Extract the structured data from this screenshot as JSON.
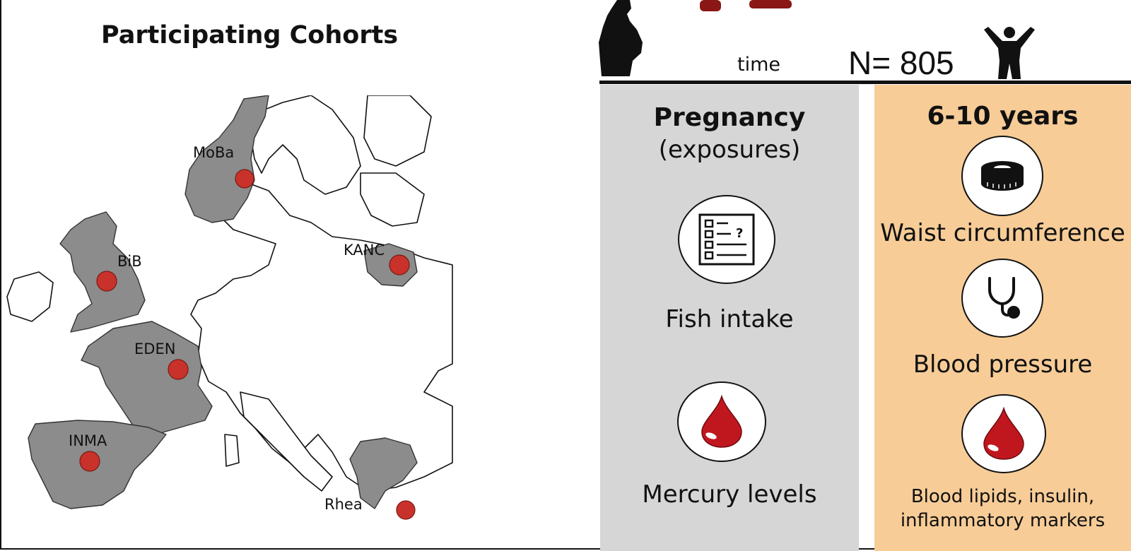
{
  "left": {
    "title": "Participating Cohorts",
    "cohorts": [
      {
        "name": "MoBa"
      },
      {
        "name": "BiB"
      },
      {
        "name": "KANC"
      },
      {
        "name": "EDEN"
      },
      {
        "name": "INMA"
      },
      {
        "name": "Rhea"
      }
    ],
    "marker_color": "#c8322a",
    "highlight_country_color": "#8c8c8c"
  },
  "right": {
    "time_label": "time",
    "n_label": "N= 805",
    "pregnancy": {
      "title": "Pregnancy",
      "subtitle": "(exposures)",
      "items": [
        {
          "label": "Fish intake",
          "icon": "questionnaire-icon"
        },
        {
          "label": "Mercury levels",
          "icon": "blood-drop-icon"
        }
      ],
      "color": "#d6d6d6"
    },
    "childhood": {
      "title": "6-10 years",
      "items": [
        {
          "label": "Waist circumference",
          "icon": "tape-measure-icon"
        },
        {
          "label": "Blood pressure",
          "icon": "stethoscope-icon"
        },
        {
          "label": "Blood lipids, insulin, inflammatory markers",
          "icon": "blood-drop-icon"
        }
      ],
      "color": "#f7cc97"
    }
  }
}
